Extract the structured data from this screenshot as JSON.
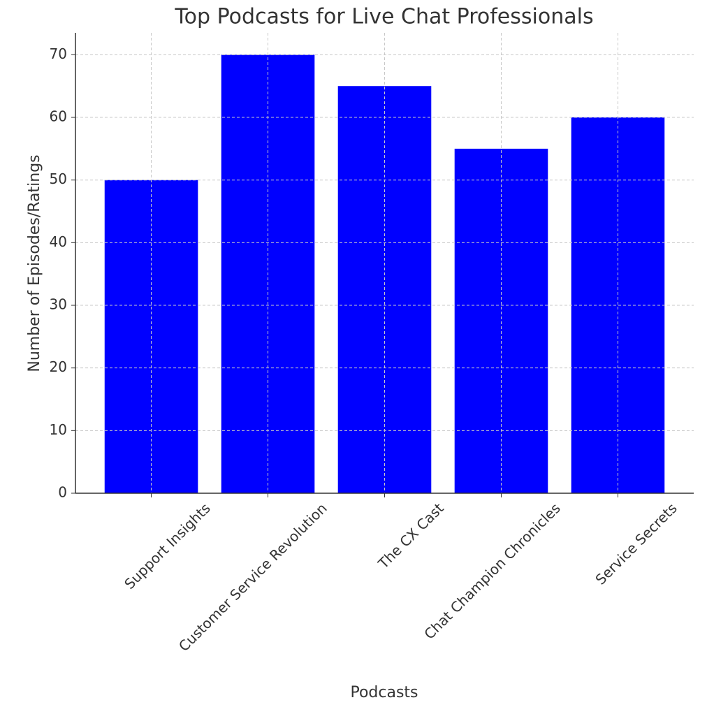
{
  "chart_data": {
    "type": "bar",
    "title": "Top Podcasts for Live Chat Professionals",
    "x_label": "Podcasts",
    "y_label": "Number of Episodes/Ratings",
    "categories": [
      "Support Insights",
      "Customer Service Revolution",
      "The CX Cast",
      "Chat Champion Chronicles",
      "Service Secrets"
    ],
    "values": [
      50,
      70,
      65,
      55,
      60
    ],
    "color": "#0000ff",
    "ylim": [
      0,
      73.5
    ],
    "yticks": [
      0,
      10,
      20,
      30,
      40,
      50,
      60,
      70
    ],
    "grid": true
  }
}
